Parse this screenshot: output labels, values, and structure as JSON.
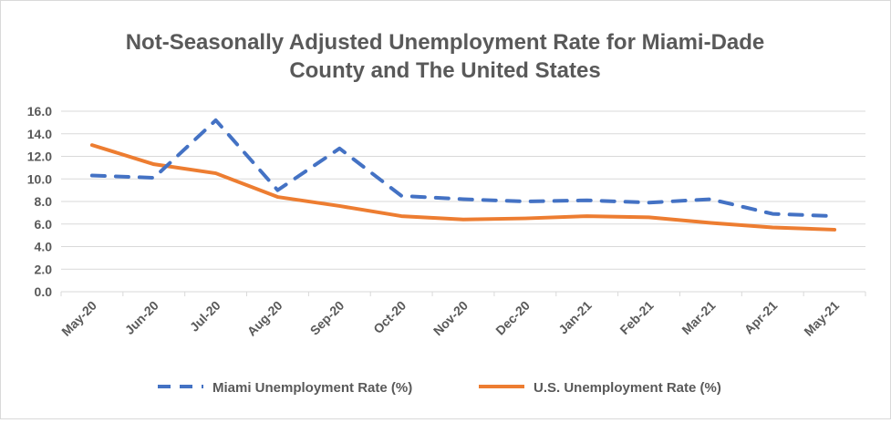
{
  "chart_data": {
    "type": "line",
    "title_lines": [
      "Not-Seasonally Adjusted Unemployment Rate for Miami-Dade",
      "County and The United States"
    ],
    "categories": [
      "May-20",
      "Jun-20",
      "Jul-20",
      "Aug-20",
      "Sep-20",
      "Oct-20",
      "Nov-20",
      "Dec-20",
      "Jan-21",
      "Feb-21",
      "Mar-21",
      "Apr-21",
      "May-21"
    ],
    "ylim": [
      0,
      16
    ],
    "yticks": [
      "0.0",
      "2.0",
      "4.0",
      "6.0",
      "8.0",
      "10.0",
      "12.0",
      "14.0",
      "16.0"
    ],
    "grid": true,
    "legend_position": "bottom",
    "series": [
      {
        "name": "Miami Unemployment Rate (%)",
        "color": "#4472C4",
        "dash": true,
        "values": [
          10.3,
          10.1,
          15.2,
          9.0,
          12.7,
          8.5,
          8.2,
          8.0,
          8.1,
          7.9,
          8.2,
          6.9,
          6.7
        ]
      },
      {
        "name": "U.S. Unemployment Rate (%)",
        "color": "#ED7D31",
        "dash": false,
        "values": [
          13.0,
          11.3,
          10.5,
          8.4,
          7.6,
          6.7,
          6.4,
          6.5,
          6.7,
          6.6,
          6.1,
          5.7,
          5.5
        ]
      }
    ]
  }
}
